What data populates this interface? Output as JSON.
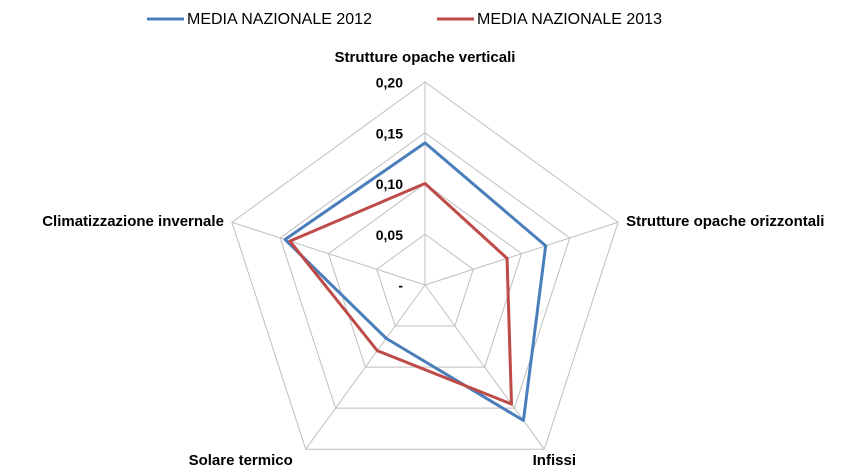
{
  "chart_data": {
    "type": "radar",
    "categories": [
      "Strutture opache verticali",
      "Strutture opache orizzontali",
      "Infissi",
      "Solare termico",
      "Climatizzazione invernale"
    ],
    "series": [
      {
        "name": "MEDIA NAZIONALE 2012",
        "color": "#4a7ebb",
        "values": [
          0.14,
          0.125,
          0.165,
          0.065,
          0.145
        ]
      },
      {
        "name": "MEDIA NAZIONALE 2013",
        "color": "#be4b48",
        "values": [
          0.1,
          0.085,
          0.145,
          0.08,
          0.14
        ]
      }
    ],
    "ylim": [
      0,
      0.2
    ],
    "yticks": [
      {
        "value": 0,
        "label": "-"
      },
      {
        "value": 0.05,
        "label": "0,05"
      },
      {
        "value": 0.1,
        "label": "0,10"
      },
      {
        "value": 0.15,
        "label": "0,15"
      },
      {
        "value": 0.2,
        "label": "0,20"
      }
    ],
    "grid": true,
    "legend": "top"
  }
}
